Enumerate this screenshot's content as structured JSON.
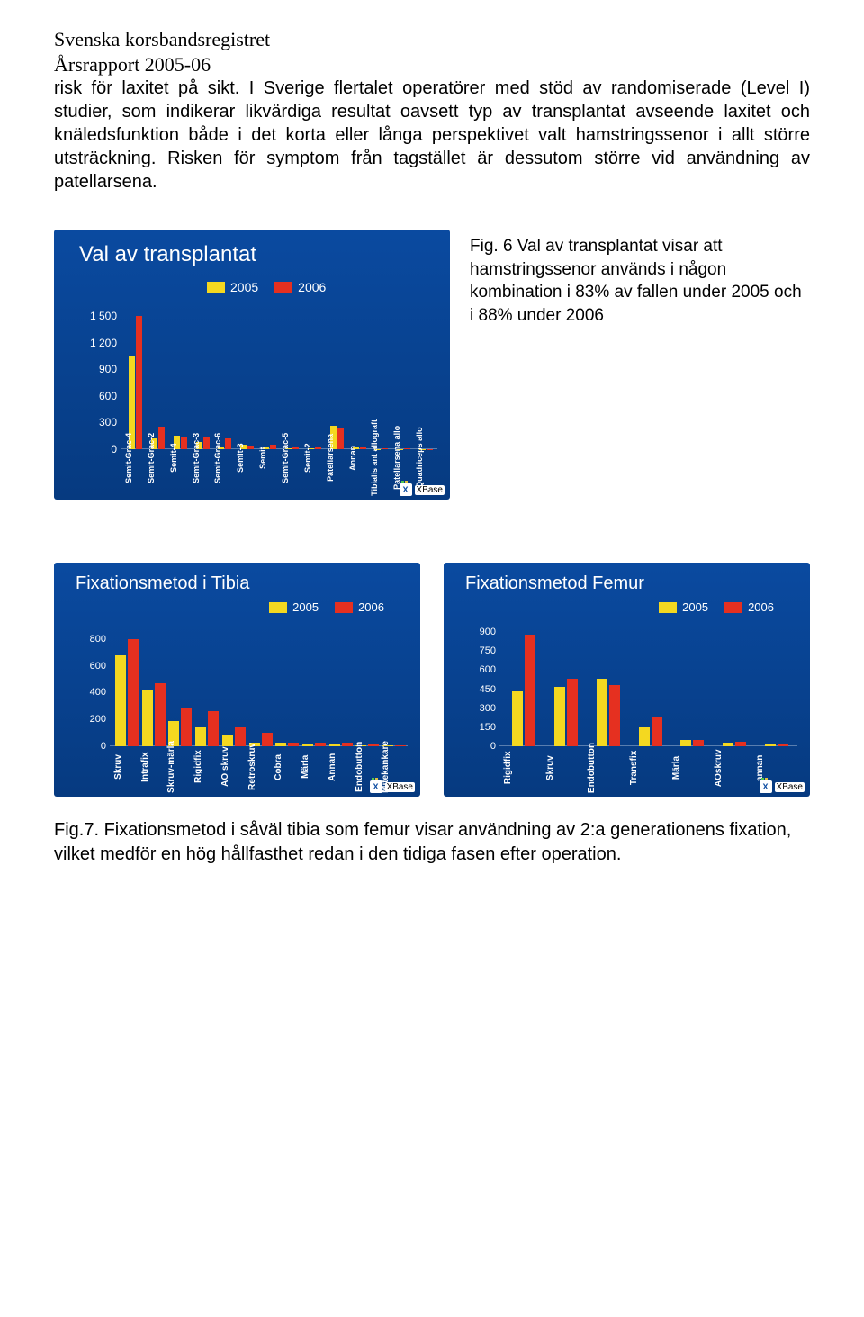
{
  "header": {
    "line1": "Svenska korsbandsregistret",
    "line2": "Årsrapport  2005-06"
  },
  "body_paragraph": "risk för laxitet på sikt.  I Sverige flertalet operatörer  med stöd av randomiserade (Level I) studier, som indikerar likvärdiga resultat oavsett typ av transplantat avseende laxitet och knäledsfunktion både i det korta eller långa perspektivet valt hamstringssenor i allt större utsträckning. Risken för symptom från tagstället är dessutom större vid användning av patellarsena.",
  "legend": {
    "series": [
      {
        "label": "2005",
        "color": "#f4d820"
      },
      {
        "label": "2006",
        "color": "#e53020"
      }
    ]
  },
  "colors": {
    "card_bg_top": "#0a4aa0",
    "card_bg_bottom": "#063a80",
    "text": "#ffffff",
    "bar_2005": "#f4d820",
    "bar_2006": "#e53020"
  },
  "footer_logo": {
    "text": "XBase",
    "icon_letter": "X"
  },
  "fig6": {
    "title": "Val av transplantat",
    "type": "bar",
    "ymax": 1600,
    "yticks": [
      0,
      300,
      600,
      900,
      1200,
      1500
    ],
    "ytick_labels": [
      "0",
      "300",
      "600",
      "900",
      "1 200",
      "1 500"
    ],
    "categories": [
      "Semit-Grac-4",
      "Semit-Grac-2",
      "Semit-4",
      "Semit-Grac-3",
      "Semit-Grac-6",
      "Semit-3",
      "Semit",
      "Semit-Grac-5",
      "Semit-2",
      "Patellarsena",
      "Annan",
      "Tibialis ant allograft",
      "Patellarsena allo",
      "Quadriceps allo"
    ],
    "values_2005": [
      1050,
      120,
      150,
      80,
      20,
      55,
      30,
      10,
      8,
      260,
      18,
      5,
      4,
      3
    ],
    "values_2006": [
      1500,
      250,
      140,
      130,
      120,
      45,
      50,
      35,
      25,
      235,
      25,
      8,
      6,
      4
    ],
    "caption": "Fig. 6 Val av transplantat visar att hamstringssenor används i någon kombination i 83% av fallen under 2005 och i 88% under 2006"
  },
  "fig7a": {
    "title": "Fixationsmetod i Tibia",
    "type": "bar",
    "ymax": 900,
    "yticks": [
      0,
      200,
      400,
      600,
      800
    ],
    "categories": [
      "Skruv",
      "Intrafix",
      "Skruv-märla",
      "Rigidfix",
      "AO skruv",
      "Retroskruv",
      "Cobra",
      "Märla",
      "Annan",
      "Endobutton",
      "Mitekankare"
    ],
    "values_2005": [
      680,
      420,
      190,
      140,
      80,
      25,
      25,
      20,
      20,
      10,
      5
    ],
    "values_2006": [
      800,
      470,
      280,
      260,
      140,
      100,
      30,
      30,
      25,
      20,
      8
    ]
  },
  "fig7b": {
    "title": "Fixationsmetod Femur",
    "type": "bar",
    "ymax": 950,
    "yticks": [
      0,
      150,
      300,
      450,
      600,
      750,
      900
    ],
    "categories": [
      "Rigidfix",
      "Skruv",
      "Endobutton",
      "Transfix",
      "Märla",
      "AOskruv",
      "annan"
    ],
    "values_2005": [
      430,
      470,
      530,
      150,
      50,
      25,
      15
    ],
    "values_2006": [
      880,
      530,
      480,
      230,
      50,
      35,
      20
    ]
  },
  "fig7_caption": "Fig.7. Fixationsmetod i såväl tibia som femur visar användning av 2:a generationens fixation, vilket medför en hög hållfasthet redan i den tidiga fasen efter operation."
}
